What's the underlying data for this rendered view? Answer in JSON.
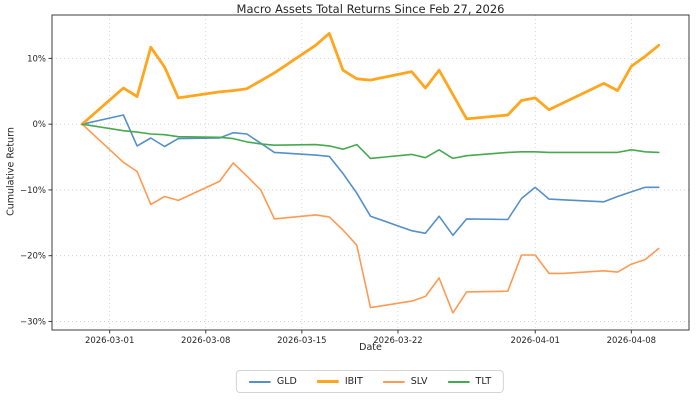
{
  "figure": {
    "background": "#ffffff",
    "text_color": "#262626",
    "grid_color": "#cccccc",
    "spine_color": "#3c3c3c"
  },
  "chart_data": {
    "type": "line",
    "title": "Macro Assets Total Returns Since Feb 27, 2026",
    "xlabel": "Date",
    "ylabel": "Cumulative Return",
    "grid": true,
    "legend_position": "bottom-center-outside",
    "x": [
      "2026-02-27",
      "2026-03-02",
      "2026-03-03",
      "2026-03-04",
      "2026-03-05",
      "2026-03-06",
      "2026-03-09",
      "2026-03-10",
      "2026-03-11",
      "2026-03-12",
      "2026-03-13",
      "2026-03-16",
      "2026-03-17",
      "2026-03-18",
      "2026-03-19",
      "2026-03-20",
      "2026-03-23",
      "2026-03-24",
      "2026-03-25",
      "2026-03-26",
      "2026-03-27",
      "2026-03-30",
      "2026-03-31",
      "2026-04-01",
      "2026-04-02",
      "2026-04-03",
      "2026-04-06",
      "2026-04-07",
      "2026-04-08",
      "2026-04-09",
      "2026-04-10"
    ],
    "series": [
      {
        "name": "GLD",
        "color": "#5590c8",
        "line_width": 1.6,
        "values": [
          0,
          1.4,
          -3.3,
          -2.1,
          -3.4,
          -2.2,
          -2.1,
          -1.3,
          -1.5,
          -2.9,
          -4.3,
          -4.7,
          -4.9,
          -7.5,
          -10.5,
          -14.0,
          -16.2,
          -16.6,
          -14.0,
          -16.9,
          -14.4,
          -14.5,
          -11.3,
          -9.6,
          -11.4,
          -11.5,
          -11.8,
          -11.0,
          -10.3,
          -9.6,
          -9.6
        ]
      },
      {
        "name": "IBIT",
        "color": "#ffa51e",
        "line_width": 2.8,
        "values": [
          0,
          5.5,
          4.2,
          11.7,
          8.7,
          4.0,
          4.9,
          5.1,
          5.4,
          6.6,
          7.8,
          12.0,
          13.8,
          8.2,
          6.9,
          6.7,
          8.0,
          5.5,
          8.2,
          4.5,
          0.8,
          1.4,
          3.6,
          4.0,
          2.2,
          3.2,
          6.2,
          5.1,
          8.8,
          10.3,
          12.0
        ]
      },
      {
        "name": "SLV",
        "color": "#ff9a52",
        "line_width": 1.6,
        "values": [
          0,
          -5.8,
          -7.2,
          -12.2,
          -11.0,
          -11.6,
          -8.7,
          -5.9,
          -7.9,
          -10.0,
          -14.4,
          -13.8,
          -14.1,
          -16.1,
          -18.4,
          -27.9,
          -26.9,
          -26.2,
          -23.4,
          -28.7,
          -25.5,
          -25.4,
          -19.9,
          -19.9,
          -22.7,
          -22.7,
          -22.3,
          -22.5,
          -21.3,
          -20.6,
          -18.9
        ]
      },
      {
        "name": "TLT",
        "color": "#47a94f",
        "line_width": 1.6,
        "values": [
          0,
          -1.0,
          -1.2,
          -1.5,
          -1.6,
          -1.9,
          -2.0,
          -2.2,
          -2.7,
          -3.0,
          -3.2,
          -3.1,
          -3.3,
          -3.8,
          -3.1,
          -5.2,
          -4.6,
          -5.1,
          -3.9,
          -5.2,
          -4.8,
          -4.3,
          -4.2,
          -4.2,
          -4.3,
          -4.3,
          -4.3,
          -4.3,
          -3.9,
          -4.2,
          -4.3
        ]
      }
    ],
    "x_ticks": [
      {
        "label": "2026-03-01"
      },
      {
        "label": "2026-03-08"
      },
      {
        "label": "2026-03-15"
      },
      {
        "label": "2026-03-22"
      },
      {
        "label": "2026-04-01"
      },
      {
        "label": "2026-04-08"
      }
    ],
    "y_ticks": [
      {
        "label": "10%",
        "value": 10
      },
      {
        "label": "0%",
        "value": 0
      },
      {
        "label": "−10%",
        "value": -10
      },
      {
        "label": "−20%",
        "value": -20
      },
      {
        "label": "−30%",
        "value": -30
      }
    ],
    "ylim": [
      -31.3,
      16.6
    ],
    "xlim_days": [
      -2.2,
      44.2
    ]
  }
}
